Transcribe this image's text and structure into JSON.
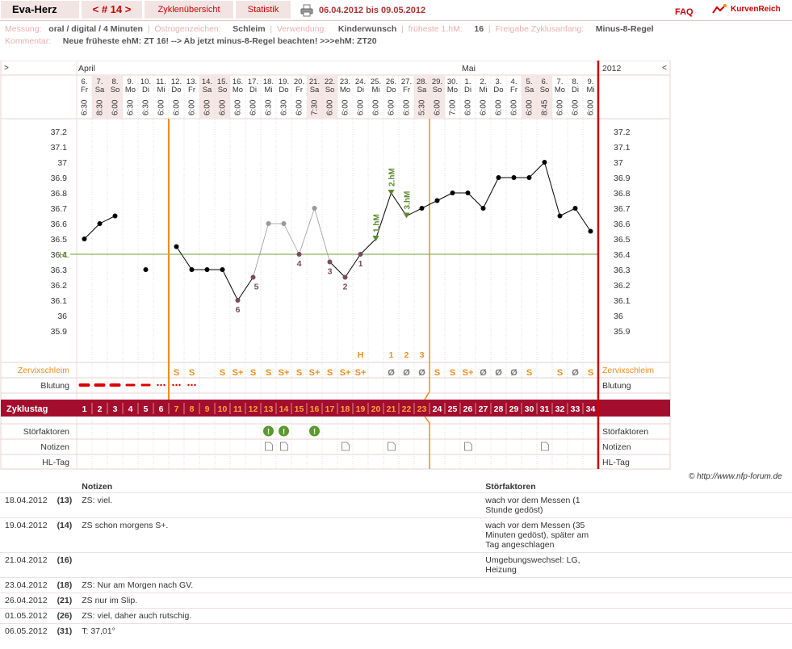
{
  "header": {
    "user": "Eva-Herz",
    "cycle_nav": "< # 14 >",
    "cycle_overview": "Zyklenübersicht",
    "statistics": "Statistik",
    "date_range": "06.04.2012 bis 09.05.2012",
    "faq": "FAQ",
    "logo_text": "KurvenReich"
  },
  "info": {
    "messung_label": "Messung:",
    "messung_value": "oral / digital / 4 Minuten",
    "oestrogen_label": "Östrogenzeichen:",
    "oestrogen_value": "Schleim",
    "verwendung_label": "Verwendung:",
    "verwendung_value": "Kinderwunsch",
    "fhm_label": "früheste 1.hM:",
    "fhm_value": "16",
    "freigabe_label": "Freigabe Zyklusanfang:",
    "freigabe_value": "Minus-8-Regel",
    "kommentar_label": "Kommentar:",
    "kommentar_value": "Neue früheste ehM: ZT 16! --> Ab jetzt minus-8-Regel beachten! >>>ehM: ZT20"
  },
  "chart_data": {
    "type": "line",
    "corner_left": ">",
    "corner_right": "<",
    "year": "2012",
    "months": [
      {
        "name": "April",
        "day_index": 0
      },
      {
        "name": "Mai",
        "day_index": 25
      }
    ],
    "days": [
      "6.",
      "7.",
      "8.",
      "9.",
      "10.",
      "11.",
      "12.",
      "13.",
      "14.",
      "15.",
      "16.",
      "17.",
      "18.",
      "19.",
      "20.",
      "21.",
      "22.",
      "23.",
      "24.",
      "25.",
      "26.",
      "27.",
      "28.",
      "29.",
      "30.",
      "1.",
      "2.",
      "3.",
      "4.",
      "5.",
      "6.",
      "7.",
      "8.",
      "9."
    ],
    "weekdays": [
      "Fr",
      "Sa",
      "So",
      "Mo",
      "Di",
      "Mi",
      "Do",
      "Fr",
      "Sa",
      "So",
      "Mo",
      "Di",
      "Mi",
      "Do",
      "Fr",
      "Sa",
      "So",
      "Mo",
      "Di",
      "Mi",
      "Do",
      "Fr",
      "Sa",
      "So",
      "Mo",
      "Di",
      "Mi",
      "Do",
      "Fr",
      "Sa",
      "So",
      "Mo",
      "Di",
      "Mi"
    ],
    "times": [
      "6:30",
      "8:30",
      "6:00",
      "6:30",
      "6:30",
      "6:00",
      "6:00",
      "6:00",
      "6:00",
      "6:00",
      "6:00",
      "6:00",
      "6:30",
      "6:30",
      "6:00",
      "7:30",
      "6:00",
      "6:00",
      "6:00",
      "6:00",
      "6:00",
      "6:00",
      "5:30",
      "6:00",
      "7:00",
      "6:00",
      "6:00",
      "6:00",
      "6:00",
      "6:00",
      "8:45",
      "6:00",
      "6:00",
      "6:00"
    ],
    "cycle_days": [
      "1",
      "2",
      "3",
      "4",
      "5",
      "6",
      "7",
      "8",
      "9",
      "10",
      "11",
      "12",
      "13",
      "14",
      "15",
      "16",
      "17",
      "18",
      "19",
      "20",
      "21",
      "22",
      "23",
      "24",
      "25",
      "26",
      "27",
      "28",
      "29",
      "30",
      "31",
      "32",
      "33",
      "34"
    ],
    "ylim": [
      35.9,
      37.2
    ],
    "yticks": [
      "37.2",
      "37.1",
      "37",
      "36.9",
      "36.8",
      "36.7",
      "36.6",
      "36.5",
      "36.4",
      "36.3",
      "36.2",
      "36.1",
      "36",
      "35.9"
    ],
    "hl_value": 36.4,
    "hl_label": "HL",
    "temperatures": [
      36.5,
      36.6,
      36.65,
      null,
      36.3,
      null,
      36.45,
      36.3,
      36.3,
      36.3,
      36.1,
      36.25,
      36.6,
      36.6,
      36.4,
      36.7,
      36.35,
      36.25,
      36.4,
      36.5,
      36.8,
      36.65,
      36.7,
      36.75,
      36.8,
      36.8,
      36.7,
      36.9,
      36.9,
      36.9,
      37.0,
      36.65,
      36.7,
      36.55
    ],
    "segments": [
      [
        0,
        2
      ],
      [
        6,
        33
      ]
    ],
    "excluded_days": [
      12,
      13,
      15
    ],
    "counted_low": [
      {
        "day": 18,
        "label": "1"
      },
      {
        "day": 17,
        "label": "2"
      },
      {
        "day": 16,
        "label": "3"
      },
      {
        "day": 14,
        "label": "4"
      },
      {
        "day": 11,
        "label": "5"
      },
      {
        "day": 10,
        "label": "6"
      }
    ],
    "high_measurements": [
      {
        "day": 19,
        "label": "1.hM"
      },
      {
        "day": 20,
        "label": "2.hM"
      },
      {
        "day": 21,
        "label": "3.hM"
      }
    ],
    "orange_lines_day_index": [
      5,
      22
    ],
    "red_line_after_day": 33,
    "peak_labels": [
      {
        "day": 18,
        "label": "H"
      },
      {
        "day": 20,
        "label": "1"
      },
      {
        "day": 21,
        "label": "2"
      },
      {
        "day": 22,
        "label": "3"
      }
    ],
    "mucus_label": "Zervixschleim",
    "mucus": [
      "",
      "",
      "",
      "",
      "",
      "",
      "S",
      "S",
      "",
      "S",
      "S+",
      "S",
      "S",
      "S+",
      "S",
      "S+",
      "S",
      "S+",
      "S+",
      "",
      "Ø",
      "Ø",
      "Ø",
      "S",
      "S",
      "S+",
      "Ø",
      "Ø",
      "Ø",
      "S",
      "",
      "S",
      "Ø",
      "S"
    ],
    "bleeding_label": "Blutung",
    "bleeding": [
      "heavy",
      "heavy",
      "heavy",
      "medium",
      "medium",
      "spot",
      "spot",
      "spot",
      "",
      "",
      "",
      "",
      "",
      "",
      "",
      "",
      "",
      "",
      "",
      "",
      "",
      "",
      "",
      "",
      "",
      "",
      "",
      "",
      "",
      "",
      "",
      "",
      "",
      ""
    ],
    "cycleday_label": "Zyklustag",
    "stoer_label": "Störfaktoren",
    "stoer_days": [
      12,
      13,
      15
    ],
    "notes_label": "Notizen",
    "note_days": [
      12,
      13,
      17,
      20,
      25,
      30
    ],
    "hltag_label": "HL-Tag",
    "colors": {
      "temp": "#000",
      "excluded": "#999",
      "low": "#7a4b5a",
      "high": "#5a8a30",
      "orange": "#f08c1e",
      "red": "#cc0000",
      "band": "#a40e2e",
      "hl": "#6aa33a"
    }
  },
  "copyright": "© http://www.nfp-forum.de",
  "notes": {
    "headers": {
      "notes": "Notizen",
      "stoer": "Störfaktoren"
    },
    "rows": [
      {
        "date": "18.04.2012",
        "day": "(13)",
        "note": "ZS: viel.",
        "stoer": "wach vor dem Messen (1 Stunde gedöst)"
      },
      {
        "date": "19.04.2012",
        "day": "(14)",
        "note": "ZS schon morgens S+.",
        "stoer": "wach vor dem Messen (35 Minuten gedöst), später am Tag angeschlagen"
      },
      {
        "date": "21.04.2012",
        "day": "(16)",
        "note": "",
        "stoer": "Umgebungswechsel: LG, Heizung"
      },
      {
        "date": "23.04.2012",
        "day": "(18)",
        "note": "ZS: Nur am Morgen nach GV.",
        "stoer": ""
      },
      {
        "date": "26.04.2012",
        "day": "(21)",
        "note": "ZS nur im Slip.",
        "stoer": ""
      },
      {
        "date": "01.05.2012",
        "day": "(26)",
        "note": "ZS: viel, daher auch rutschig.",
        "stoer": ""
      },
      {
        "date": "06.05.2012",
        "day": "(31)",
        "note": "T: 37,01°",
        "stoer": ""
      }
    ]
  }
}
